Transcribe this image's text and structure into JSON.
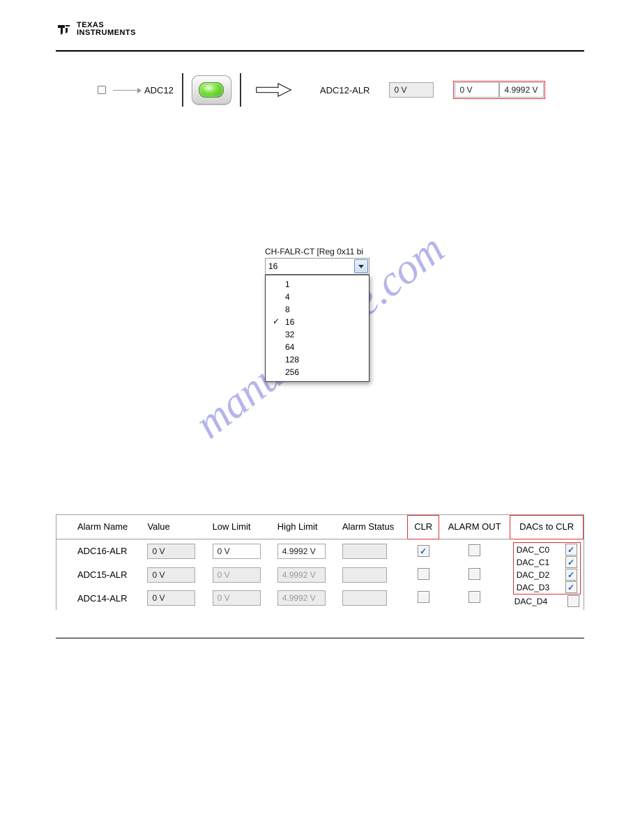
{
  "logo": {
    "line1": "TEXAS",
    "line2": "INSTRUMENTS"
  },
  "row1": {
    "adc_label": "ADC12",
    "alr_label": "ADC12-ALR",
    "value": "0 V",
    "low": "0 V",
    "high": "4.9992 V"
  },
  "dropdown": {
    "title": "CH-FALR-CT [Reg 0x11 bi",
    "selected": "16",
    "options": [
      "1",
      "4",
      "8",
      "16",
      "32",
      "64",
      "128",
      "256"
    ],
    "checked": "16"
  },
  "table": {
    "headers": {
      "name": "Alarm Name",
      "value": "Value",
      "low": "Low Limit",
      "high": "High Limit",
      "status": "Alarm Status",
      "clr": "CLR",
      "out": "ALARM OUT",
      "dacs": "DACs to CLR"
    },
    "rows": [
      {
        "name": "ADC16-ALR",
        "value": "0 V",
        "low": "0 V",
        "high": "4.9992 V",
        "enabled": true,
        "clr": true,
        "out": false
      },
      {
        "name": "ADC15-ALR",
        "value": "0 V",
        "low": "0 V",
        "high": "4.9992 V",
        "enabled": false,
        "clr": false,
        "out": false
      },
      {
        "name": "ADC14-ALR",
        "value": "0 V",
        "low": "0 V",
        "high": "4.9992 V",
        "enabled": false,
        "clr": false,
        "out": false
      }
    ],
    "dacs": [
      {
        "label": "DAC_C0",
        "checked": true,
        "boxed": true
      },
      {
        "label": "DAC_C1",
        "checked": true,
        "boxed": true
      },
      {
        "label": "DAC_D2",
        "checked": true,
        "boxed": true
      },
      {
        "label": "DAC_D3",
        "checked": true,
        "boxed": true
      },
      {
        "label": "DAC_D4",
        "checked": false,
        "boxed": false
      }
    ]
  },
  "watermark": "manualshive.com",
  "colors": {
    "red_frame": "#d33",
    "led_green": "#2aa80d",
    "check_blue": "#1462c9",
    "wm": "rgba(120,120,220,.55)"
  }
}
